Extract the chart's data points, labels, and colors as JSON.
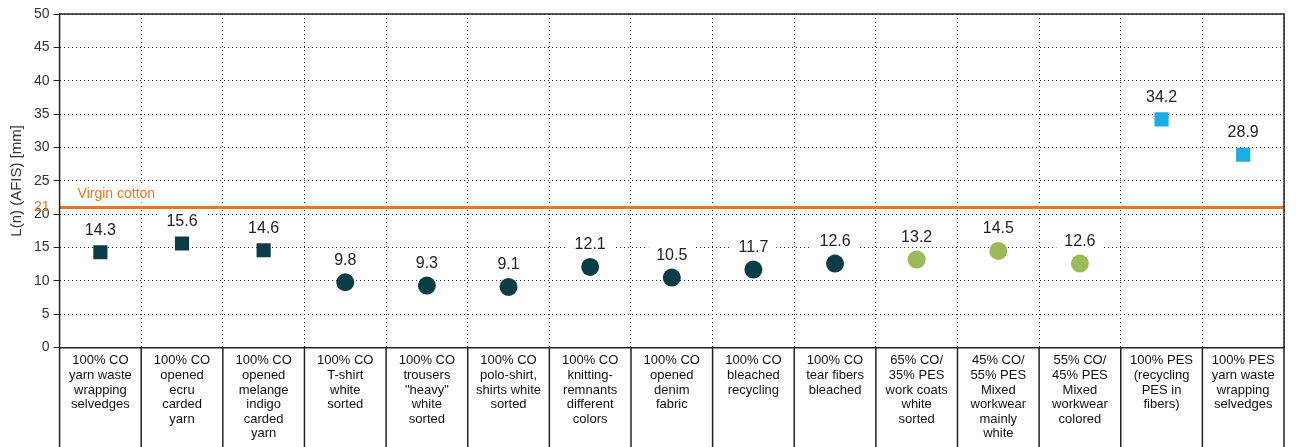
{
  "chart_data": {
    "type": "scatter",
    "ylabel": "L(n) (AFIS) [mm]",
    "categories": [
      "100% CO yarn waste wrapping selvedges",
      "100% CO opened ecru carded yarn",
      "100% CO opened melange indigo carded yarn",
      "100% CO T-shirt white sorted",
      "100% CO trousers \"heavy\" white sorted",
      "100% CO polo-shirt, shirts white sorted",
      "100% CO knitting-remnants different colors",
      "100% CO opened denim fabric",
      "100% CO bleached recycling",
      "100% CO tear fibers bleached",
      "65% CO/ 35% PES work coats white sorted",
      "45% CO/ 55% PES Mixed workwear mainly white",
      "55% CO/ 45% PES Mixed workwear colored",
      "100% PES (recycling PES in fibers)",
      "100% PES yarn waste wrapping selvedges"
    ],
    "series": [
      {
        "color": "#0b3d47",
        "marker": "square",
        "values": [
          14.3,
          15.6,
          14.6,
          null,
          null,
          null,
          null,
          null,
          null,
          null,
          null,
          null,
          null,
          null,
          null
        ]
      },
      {
        "color": "#0b3d47",
        "marker": "circle",
        "values": [
          null,
          null,
          null,
          9.8,
          9.3,
          9.1,
          12.1,
          10.5,
          11.7,
          12.6,
          null,
          null,
          null,
          null,
          null
        ]
      },
      {
        "color": "#9bbb59",
        "marker": "circle",
        "values": [
          null,
          null,
          null,
          null,
          null,
          null,
          null,
          null,
          null,
          null,
          13.2,
          14.5,
          12.6,
          null,
          null
        ]
      },
      {
        "color": "#1aace3",
        "marker": "square",
        "values": [
          null,
          null,
          null,
          null,
          null,
          null,
          null,
          null,
          null,
          null,
          null,
          null,
          null,
          34.2,
          28.9
        ]
      }
    ],
    "ylim": [
      0,
      50
    ],
    "yticks": [
      0,
      5,
      10,
      15,
      20,
      21,
      25,
      30,
      35,
      40,
      45,
      50
    ],
    "ref_lines": [
      {
        "axis": "y",
        "value": 21,
        "label": "Virgin cotton",
        "color": "#e87722"
      }
    ],
    "grid": true,
    "legend": false,
    "data_labels": true
  }
}
